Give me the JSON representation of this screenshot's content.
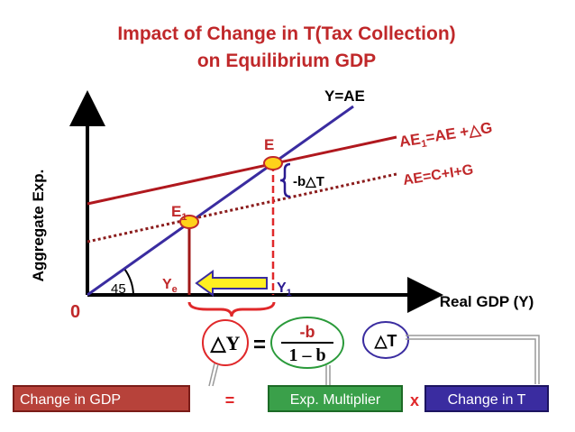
{
  "title": [
    "Impact of Change in T(Tax Collection)",
    "on Equilibrium GDP"
  ],
  "axes": {
    "y_label": "Aggregate Exp.",
    "x_label": "Real GDP (Y)",
    "origin": "0",
    "angle": "45"
  },
  "lines": {
    "y_ae": "Y=AE",
    "ae1": [
      "AE",
      "1",
      "=AE +△G"
    ],
    "ae": "AE=C+I+G"
  },
  "points": {
    "e": "E",
    "e1": [
      "E",
      "1"
    ]
  },
  "shift": "-b△T",
  "x_points": {
    "ye": [
      "Y",
      "e"
    ],
    "y1": [
      "Y",
      "1"
    ]
  },
  "formula": {
    "dy": "△Y",
    "eq": "=",
    "num": "-b",
    "den": "1 – b",
    "dt": "△T"
  },
  "boxes": {
    "gdp": "Change in GDP",
    "eq": "=",
    "mult": "Exp. Multiplier",
    "times": "x",
    "t": "Change in T"
  }
}
